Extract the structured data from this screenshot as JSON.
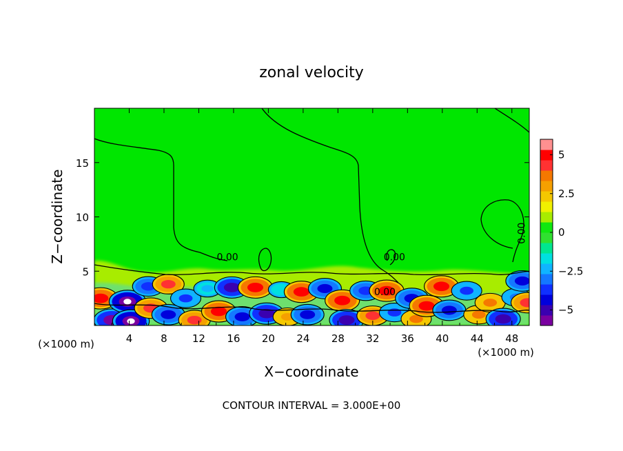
{
  "chart_data": {
    "type": "heatmap",
    "title": "zonal velocity",
    "xlabel": "X−coordinate",
    "ylabel": "Z−coordinate",
    "x_unit_left": "(×1000 m)",
    "x_unit_right": "(×1000 m)",
    "footer": "CONTOUR INTERVAL = 3.000E+00",
    "xlim": [
      0,
      50
    ],
    "ylim": [
      0,
      20
    ],
    "x_ticks": [
      4,
      8,
      12,
      16,
      20,
      24,
      28,
      32,
      36,
      40,
      44,
      48
    ],
    "y_ticks": [
      5,
      10,
      15
    ],
    "contour_labels": [
      {
        "text": "0.00",
        "x": 15.3,
        "y": 6.0
      },
      {
        "text": "0.00",
        "x": 34.5,
        "y": 6.0
      },
      {
        "text": "0.00",
        "x": 33.4,
        "y": 2.8
      },
      {
        "text": "0.00",
        "x": 49.5,
        "y": 8.5
      }
    ],
    "colorbar": {
      "range": [
        -6,
        6
      ],
      "ticks": [
        5,
        2.5,
        0,
        -2.5,
        -5
      ],
      "tick_labels": [
        "5",
        "2.5",
        "0",
        "−2.5",
        "−5"
      ],
      "colors": [
        "#7a00a0",
        "#3a00b0",
        "#0000dc",
        "#1030ff",
        "#1478ff",
        "#10b4ff",
        "#00e0e0",
        "#00e690",
        "#30e030",
        "#10e810",
        "#a8ec00",
        "#f0f000",
        "#f5c800",
        "#f5a000",
        "#f57800",
        "#ff3232",
        "#ff0000",
        "#ff9090"
      ]
    },
    "lower_layer_note": "alternating positive/negative velocity cells below z≈5",
    "cells": [
      {
        "x": 0.7,
        "y": 2.5,
        "v": 5.0
      },
      {
        "x": 2.0,
        "y": 0.5,
        "v": -5.5
      },
      {
        "x": 3.8,
        "y": 2.2,
        "v": -5.8
      },
      {
        "x": 4.2,
        "y": 0.4,
        "v": -5.8
      },
      {
        "x": 6.2,
        "y": 3.6,
        "v": -4.0
      },
      {
        "x": 6.5,
        "y": 1.6,
        "v": 4.5
      },
      {
        "x": 8.5,
        "y": 3.8,
        "v": 4.0
      },
      {
        "x": 8.5,
        "y": 1.0,
        "v": -4.5
      },
      {
        "x": 10.5,
        "y": 2.5,
        "v": -3.5
      },
      {
        "x": 11.5,
        "y": 0.5,
        "v": 4.0
      },
      {
        "x": 13.0,
        "y": 3.4,
        "v": -2.5
      },
      {
        "x": 14.3,
        "y": 1.3,
        "v": 5.0
      },
      {
        "x": 15.8,
        "y": 3.5,
        "v": -5.0
      },
      {
        "x": 17.0,
        "y": 0.8,
        "v": -4.5
      },
      {
        "x": 18.5,
        "y": 3.5,
        "v": 5.0
      },
      {
        "x": 19.8,
        "y": 1.1,
        "v": -5.0
      },
      {
        "x": 21.5,
        "y": 3.3,
        "v": -2.0
      },
      {
        "x": 22.2,
        "y": 0.8,
        "v": 3.0
      },
      {
        "x": 23.8,
        "y": 3.1,
        "v": 5.0
      },
      {
        "x": 24.5,
        "y": 1.0,
        "v": -4.5
      },
      {
        "x": 26.5,
        "y": 3.4,
        "v": -4.5
      },
      {
        "x": 28.5,
        "y": 2.3,
        "v": 5.0
      },
      {
        "x": 29.0,
        "y": 0.5,
        "v": -5.0
      },
      {
        "x": 31.2,
        "y": 3.2,
        "v": -4.0
      },
      {
        "x": 32.0,
        "y": 0.9,
        "v": 4.0
      },
      {
        "x": 33.6,
        "y": 3.2,
        "v": 5.0
      },
      {
        "x": 34.5,
        "y": 1.2,
        "v": -3.5
      },
      {
        "x": 36.5,
        "y": 2.5,
        "v": -4.5
      },
      {
        "x": 37.0,
        "y": 0.6,
        "v": 3.5
      },
      {
        "x": 38.2,
        "y": 1.8,
        "v": 5.0
      },
      {
        "x": 39.9,
        "y": 3.6,
        "v": 5.0
      },
      {
        "x": 40.8,
        "y": 1.4,
        "v": -4.5
      },
      {
        "x": 42.8,
        "y": 3.2,
        "v": -3.5
      },
      {
        "x": 44.2,
        "y": 1.0,
        "v": 3.5
      },
      {
        "x": 45.5,
        "y": 2.1,
        "v": 3.5
      },
      {
        "x": 47.0,
        "y": 0.6,
        "v": -5.0
      },
      {
        "x": 48.5,
        "y": 2.6,
        "v": -3.0
      },
      {
        "x": 49.2,
        "y": 4.1,
        "v": -4.5
      },
      {
        "x": 49.8,
        "y": 2.1,
        "v": 4.5
      }
    ]
  }
}
